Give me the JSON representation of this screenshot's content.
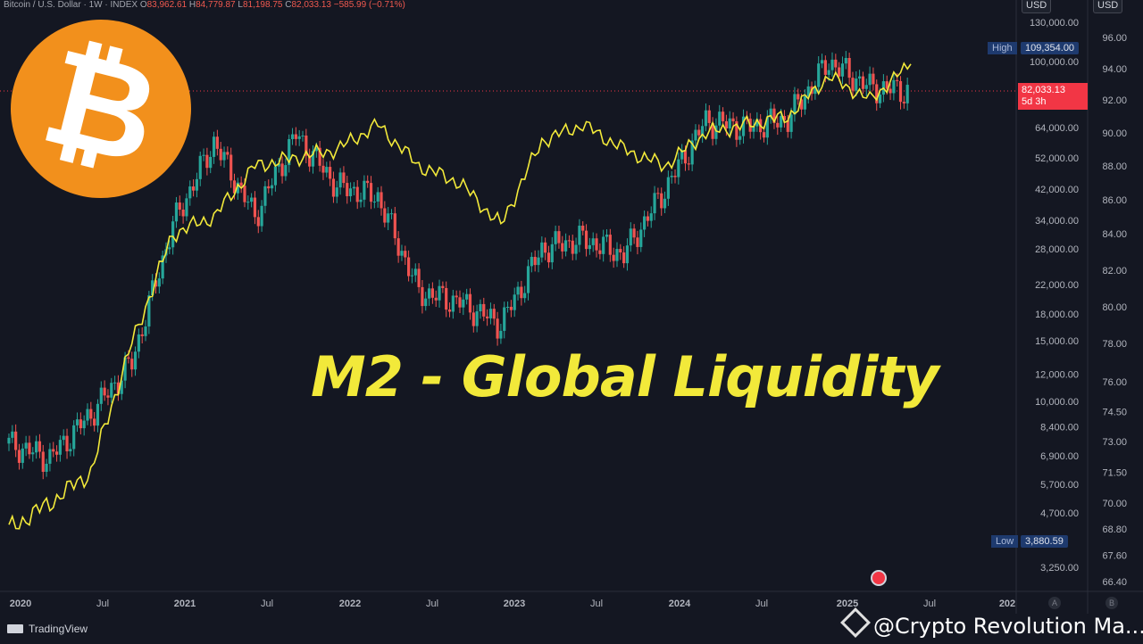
{
  "header": {
    "symbol": "Bitcoin / U.S. Dollar · 1W · INDEX",
    "open_label": "O",
    "open": "83,962.61",
    "high_label": "H",
    "high": "84,779.87",
    "low_label": "L",
    "low": "81,198.75",
    "close_label": "C",
    "close": "82,033.13",
    "change": "−585.99 (−0.71%)"
  },
  "big_title": "M2 - Global Liquidity",
  "left_axis_currency": "USD",
  "right_axis_currency": "USD",
  "high_marker": {
    "label": "High",
    "value": "109,354.00"
  },
  "low_marker": {
    "label": "Low",
    "value": "3,880.59"
  },
  "price_tag": {
    "price": "82,033.13",
    "countdown": "5d 3h"
  },
  "corner_buttons": [
    "A",
    "B"
  ],
  "footer": {
    "brand": "TradingView"
  },
  "watermark": "@Crypto Revolution Ma...",
  "colors": {
    "background": "#141722",
    "up": "#26a69a",
    "down": "#ef5350",
    "m2_line": "#f2e93a",
    "logo": "#f2901c",
    "price_line": "#f23645"
  },
  "icons": {
    "logo": "bitcoin-logo",
    "flag": "us-flag-icon",
    "tv": "tradingview-icon",
    "watermark": "binance-icon"
  },
  "chart_data": {
    "type": "line",
    "title": "M2 - Global Liquidity",
    "x": [
      "2020-01",
      "2020-04",
      "2020-07",
      "2020-10",
      "2021-01",
      "2021-04",
      "2021-07",
      "2021-10",
      "2022-01",
      "2022-04",
      "2022-07",
      "2022-10",
      "2023-01",
      "2023-04",
      "2023-07",
      "2023-10",
      "2024-01",
      "2024-04",
      "2024-07",
      "2024-10",
      "2025-01",
      "2025-03",
      "2025-05"
    ],
    "series": [
      {
        "values": [
          7500,
          6800,
          9200,
          13000,
          33000,
          58000,
          35000,
          61000,
          43000,
          40000,
          21000,
          19500,
          16800,
          28000,
          30000,
          27000,
          42000,
          67000,
          64000,
          68000,
          100000,
          84000,
          82033
        ]
      },
      {
        "values": [
          68.8,
          70.0,
          71.5,
          78.0,
          84.0,
          85.0,
          88.0,
          88.5,
          89.0,
          90.5,
          88.0,
          87.0,
          84.5,
          89.5,
          90.5,
          89.0,
          88.0,
          90.0,
          90.5,
          91.0,
          93.5,
          92.0,
          94.3
        ]
      }
    ],
    "left_axis": {
      "ticks": [
        3250,
        4700,
        5700,
        6900,
        8400,
        10000,
        12000,
        15000,
        18000,
        22000,
        28000,
        34000,
        42000,
        52000,
        64000,
        100000,
        130000
      ],
      "labels": [
        "3,250.00",
        "4,700.00",
        "5,700.00",
        "6,900.00",
        "8,400.00",
        "10,000.00",
        "12,000.00",
        "15,000.00",
        "18,000.00",
        "22,000.00",
        "28,000.00",
        "34,000.00",
        "42,000.00",
        "52,000.00",
        "64,000.00",
        "100,000.00",
        "130,000.00"
      ],
      "scale": "log"
    },
    "right_axis": {
      "ticks": [
        66.4,
        67.6,
        68.8,
        70.0,
        71.5,
        73.0,
        74.5,
        76.0,
        78.0,
        80.0,
        82.0,
        84.0,
        86.0,
        88.0,
        90.0,
        92.0,
        94.0,
        96.0
      ],
      "labels": [
        "66.40",
        "67.60",
        "68.80",
        "70.00",
        "71.50",
        "73.00",
        "74.50",
        "76.00",
        "78.00",
        "80.00",
        "82.00",
        "84.00",
        "86.00",
        "88.00",
        "90.00",
        "92.00",
        "94.00",
        "96.00"
      ]
    },
    "x_ticks": [
      "2020",
      "Jul",
      "2021",
      "Jul",
      "2022",
      "Jul",
      "2023",
      "Jul",
      "2024",
      "Jul",
      "2025",
      "Jul",
      "202"
    ]
  }
}
